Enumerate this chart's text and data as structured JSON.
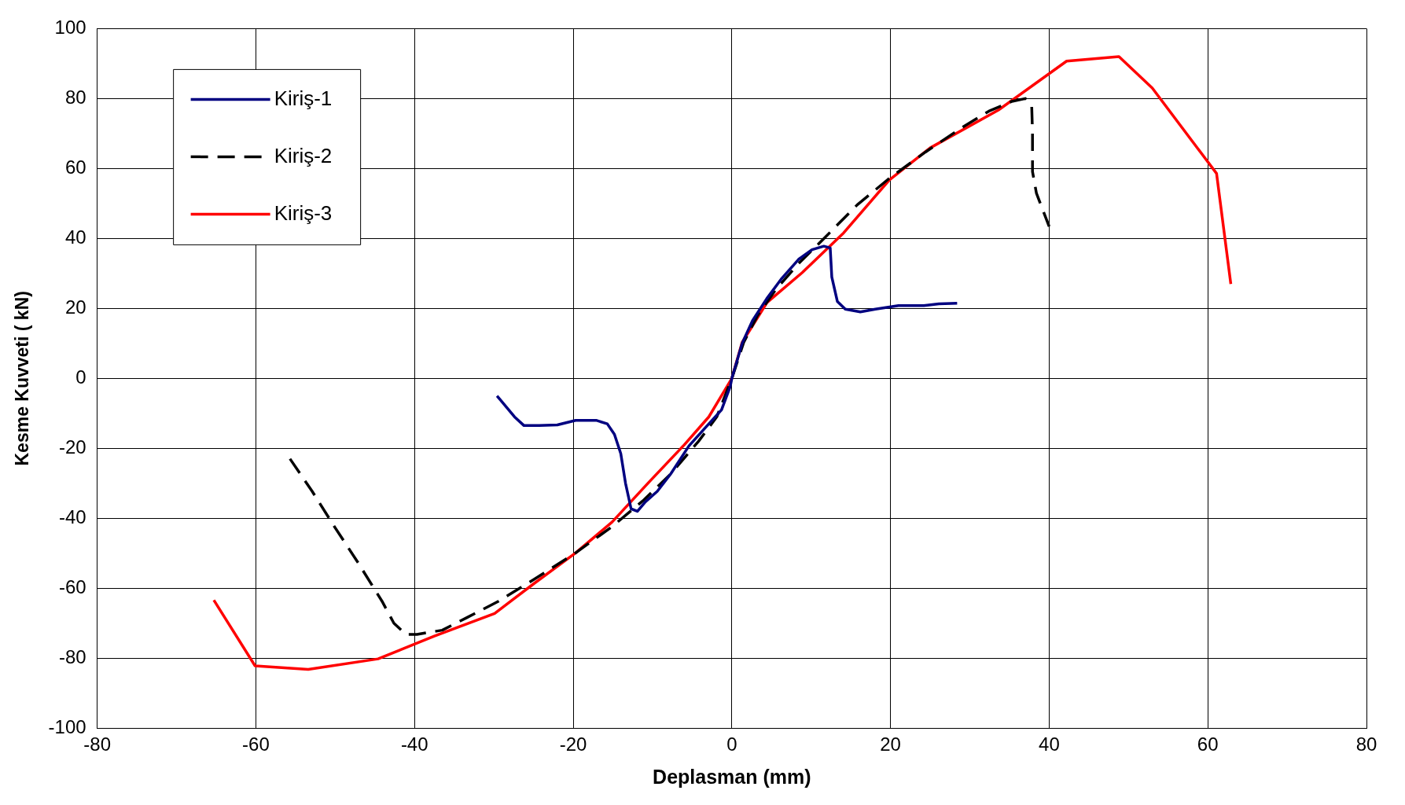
{
  "chart_data": {
    "type": "line",
    "xlabel": "Deplasman (mm)",
    "ylabel": "Kesme Kuvveti ( kN)",
    "xlim": [
      -80,
      80
    ],
    "xticks": [
      -80,
      -60,
      -40,
      -20,
      0,
      20,
      40,
      60,
      80
    ],
    "ylim": [
      -100,
      100
    ],
    "yticks": [
      -100,
      -80,
      -60,
      -40,
      -20,
      0,
      20,
      40,
      60,
      80,
      100
    ],
    "grid": true,
    "legend": "top left",
    "marker": "none",
    "series": [
      {
        "name": "Kiriş-1",
        "color": "#000080",
        "line_style": "solid",
        "x": [
          -29.6,
          -27.4,
          -26.2,
          -24.3,
          -22,
          -19.7,
          -17.1,
          -15.7,
          -14.8,
          -14,
          -13.4,
          -12.7,
          -11.9,
          -10.9,
          -9.4,
          -7.7,
          -5.4,
          -3.1,
          -1.3,
          -0.2,
          0,
          1.3,
          2.6,
          4.4,
          6.3,
          8.4,
          10.1,
          11.6,
          12.4,
          12.6,
          13.3,
          14.3,
          16.2,
          18.1,
          21,
          24.2,
          26.1,
          28.4
        ],
        "values": [
          -5,
          -11,
          -13.5,
          -13.5,
          -13.3,
          -12,
          -12,
          -13,
          -16,
          -21.5,
          -30,
          -37.3,
          -38,
          -35.3,
          -32.3,
          -27.3,
          -19.3,
          -13.5,
          -9,
          -2.3,
          0,
          10,
          16.5,
          22.8,
          28.6,
          34,
          36.8,
          37.8,
          37.3,
          29,
          22,
          19.8,
          19,
          19.8,
          20.8,
          20.8,
          21.3,
          21.5
        ]
      },
      {
        "name": "Kiriş-2",
        "color": "#000000",
        "line_style": "dashed",
        "x": [
          -55.7,
          -52.9,
          -50.1,
          -47.2,
          -44.1,
          -42.6,
          -41.1,
          -39.7,
          -36.5,
          -33.4,
          -29.4,
          -24.9,
          -19.7,
          -15.1,
          -11.1,
          -7.7,
          -4.2,
          -1.9,
          0,
          1.5,
          3.2,
          5.5,
          8.4,
          11.8,
          15.8,
          19.8,
          24.4,
          29,
          32.4,
          35.3,
          37,
          37.8,
          37.9,
          37.9,
          38.4,
          40
        ],
        "values": [
          -23,
          -32.3,
          -42.4,
          -52.4,
          -63.7,
          -70,
          -73.2,
          -73.2,
          -72,
          -68.4,
          -63.7,
          -57.4,
          -49.9,
          -42.4,
          -34.8,
          -27.3,
          -18,
          -11,
          0,
          10.3,
          17.8,
          25.3,
          32.8,
          40.4,
          49.6,
          57.1,
          64.7,
          71.7,
          76.4,
          79.2,
          80,
          77.9,
          70.4,
          59.1,
          52.9,
          43.4
        ]
      },
      {
        "name": "Kiriş-3",
        "color": "#ff0000",
        "line_style": "solid",
        "x": [
          -65.3,
          -60.1,
          -53.4,
          -44.6,
          -37.5,
          -29.9,
          -24.9,
          -19.7,
          -15.1,
          -10.5,
          -6,
          -2.9,
          0,
          1.3,
          4.4,
          8.9,
          14.1,
          19.8,
          25,
          33.6,
          42.2,
          48.8,
          53,
          61.1,
          62.9
        ],
        "values": [
          -63.4,
          -82.2,
          -83.2,
          -80.2,
          -73.7,
          -67.2,
          -58.6,
          -49.9,
          -41.1,
          -29.8,
          -19,
          -11,
          0,
          10.3,
          21.6,
          30.3,
          41.6,
          56.6,
          65.9,
          76.7,
          90.7,
          92,
          83,
          58.6,
          27
        ]
      }
    ]
  }
}
